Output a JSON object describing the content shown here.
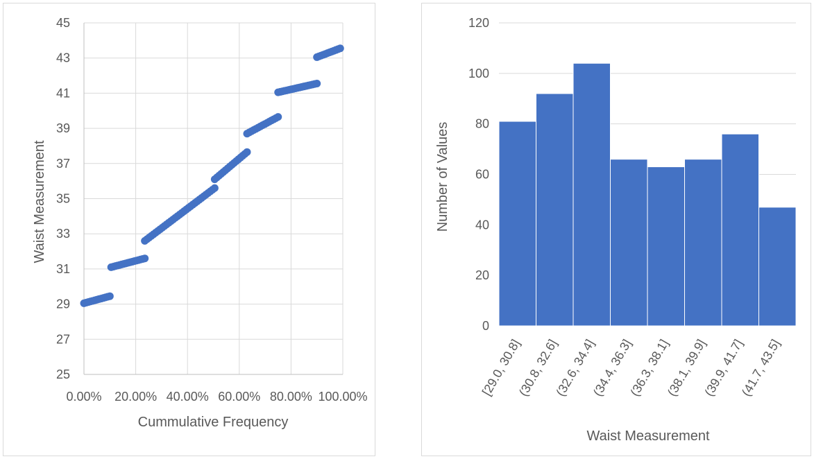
{
  "chart_data": [
    {
      "type": "scatter",
      "title": "",
      "xlabel": "Cummulative Frequency",
      "ylabel": "Waist Measurement",
      "xlim": [
        0,
        1
      ],
      "ylim": [
        25,
        45
      ],
      "x_ticks": [
        "0.00%",
        "20.00%",
        "40.00%",
        "60.00%",
        "80.00%",
        "100.00%"
      ],
      "y_ticks": [
        "25",
        "27",
        "29",
        "31",
        "33",
        "35",
        "37",
        "39",
        "41",
        "43",
        "45"
      ],
      "grid": true,
      "legend": "none",
      "marker_color": "#4472C4",
      "series_segments": [
        {
          "x": [
            0.0,
            0.1
          ],
          "y": [
            29.05,
            29.45
          ]
        },
        {
          "x": [
            0.105,
            0.235
          ],
          "y": [
            31.1,
            31.6
          ]
        },
        {
          "x": [
            0.235,
            0.505
          ],
          "y": [
            32.6,
            35.6
          ]
        },
        {
          "x": [
            0.505,
            0.63
          ],
          "y": [
            36.1,
            37.65
          ]
        },
        {
          "x": [
            0.63,
            0.75
          ],
          "y": [
            38.7,
            39.65
          ]
        },
        {
          "x": [
            0.75,
            0.9
          ],
          "y": [
            41.05,
            41.55
          ]
        },
        {
          "x": [
            0.9,
            0.99
          ],
          "y": [
            43.05,
            43.55
          ]
        }
      ]
    },
    {
      "type": "bar",
      "title": "",
      "xlabel": "Waist Measurement",
      "ylabel": "Number of Values",
      "ylim": [
        0,
        120
      ],
      "y_ticks": [
        "0",
        "20",
        "40",
        "60",
        "80",
        "100",
        "120"
      ],
      "categories": [
        "[29.0, 30.8]",
        "(30.8, 32.6]",
        "(32.6, 34.4]",
        "(34.4, 36.3]",
        "(36.3, 38.1]",
        "(38.1, 39.9]",
        "(39.9, 41.7]",
        "(41.7, 43.5]"
      ],
      "values": [
        81,
        92,
        104,
        66,
        63,
        66,
        76,
        47
      ],
      "bar_color": "#4472C4",
      "grid": true,
      "legend": "none"
    }
  ]
}
